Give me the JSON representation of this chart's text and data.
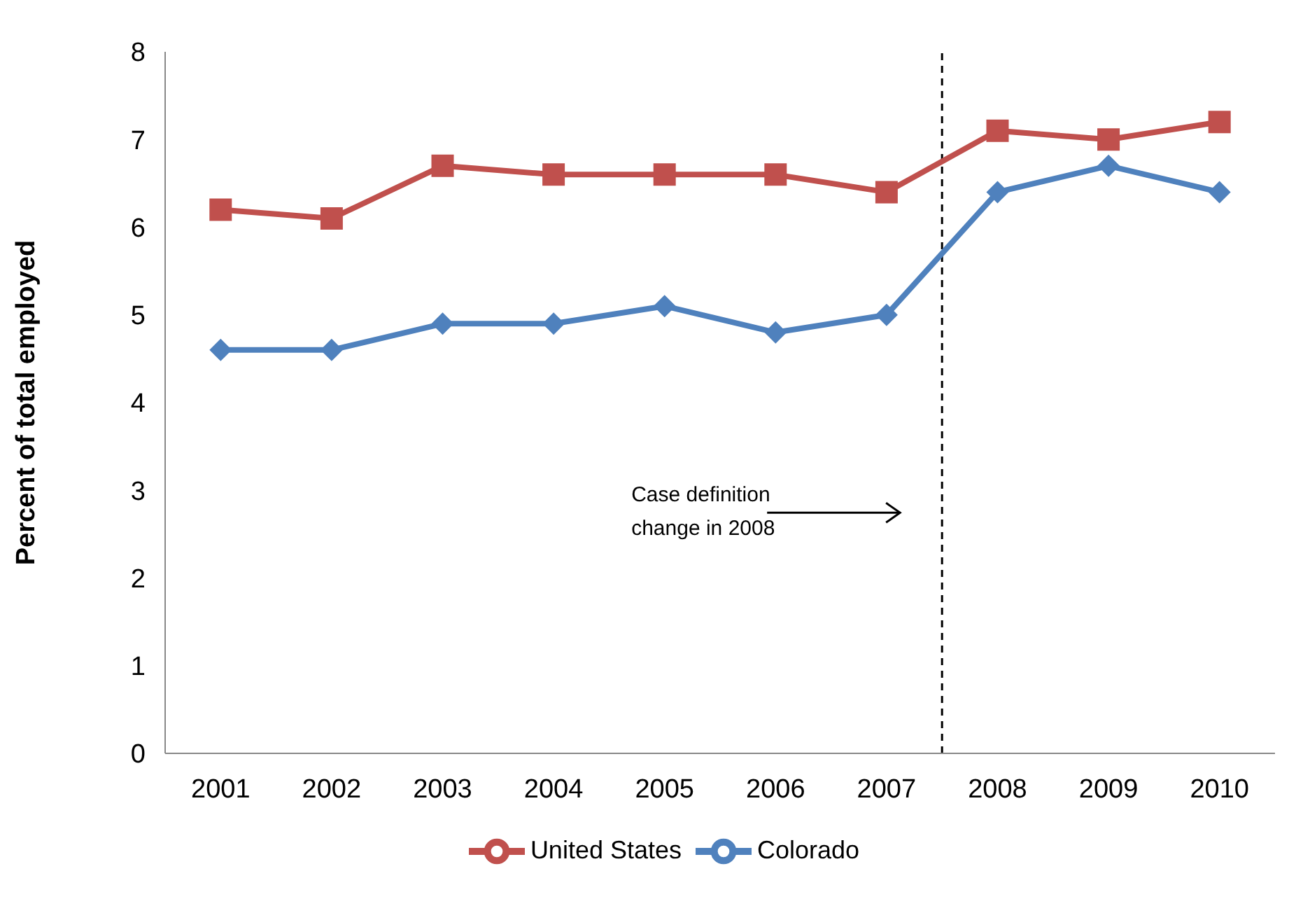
{
  "chart_data": {
    "type": "line",
    "ylabel": "Percent of total employed",
    "x": [
      2001,
      2002,
      2003,
      2004,
      2005,
      2006,
      2007,
      2008,
      2009,
      2010
    ],
    "xlim": [
      2000.5,
      2010.5
    ],
    "xticks": [
      2001,
      2002,
      2003,
      2004,
      2005,
      2006,
      2007,
      2008,
      2009,
      2010
    ],
    "ylim": [
      0,
      8
    ],
    "yticks": [
      0,
      1,
      2,
      3,
      4,
      5,
      6,
      7,
      8
    ],
    "series": [
      {
        "name": "United States",
        "color": "#c0504d",
        "marker": "square",
        "values": [
          6.2,
          6.1,
          6.7,
          6.6,
          6.6,
          6.6,
          6.4,
          7.1,
          7.0,
          7.2
        ]
      },
      {
        "name": "Colorado",
        "color": "#4f81bd",
        "marker": "diamond",
        "values": [
          4.6,
          4.6,
          4.9,
          4.9,
          5.1,
          4.8,
          5.0,
          6.4,
          6.7,
          6.4
        ]
      }
    ],
    "ref_lines": [
      {
        "axis": "x",
        "value": 2007.5,
        "color": "#000000",
        "line_style": "dashed"
      }
    ],
    "annotations": [
      "Case definition change in 2008"
    ],
    "grid": false,
    "legend": "bottom"
  }
}
